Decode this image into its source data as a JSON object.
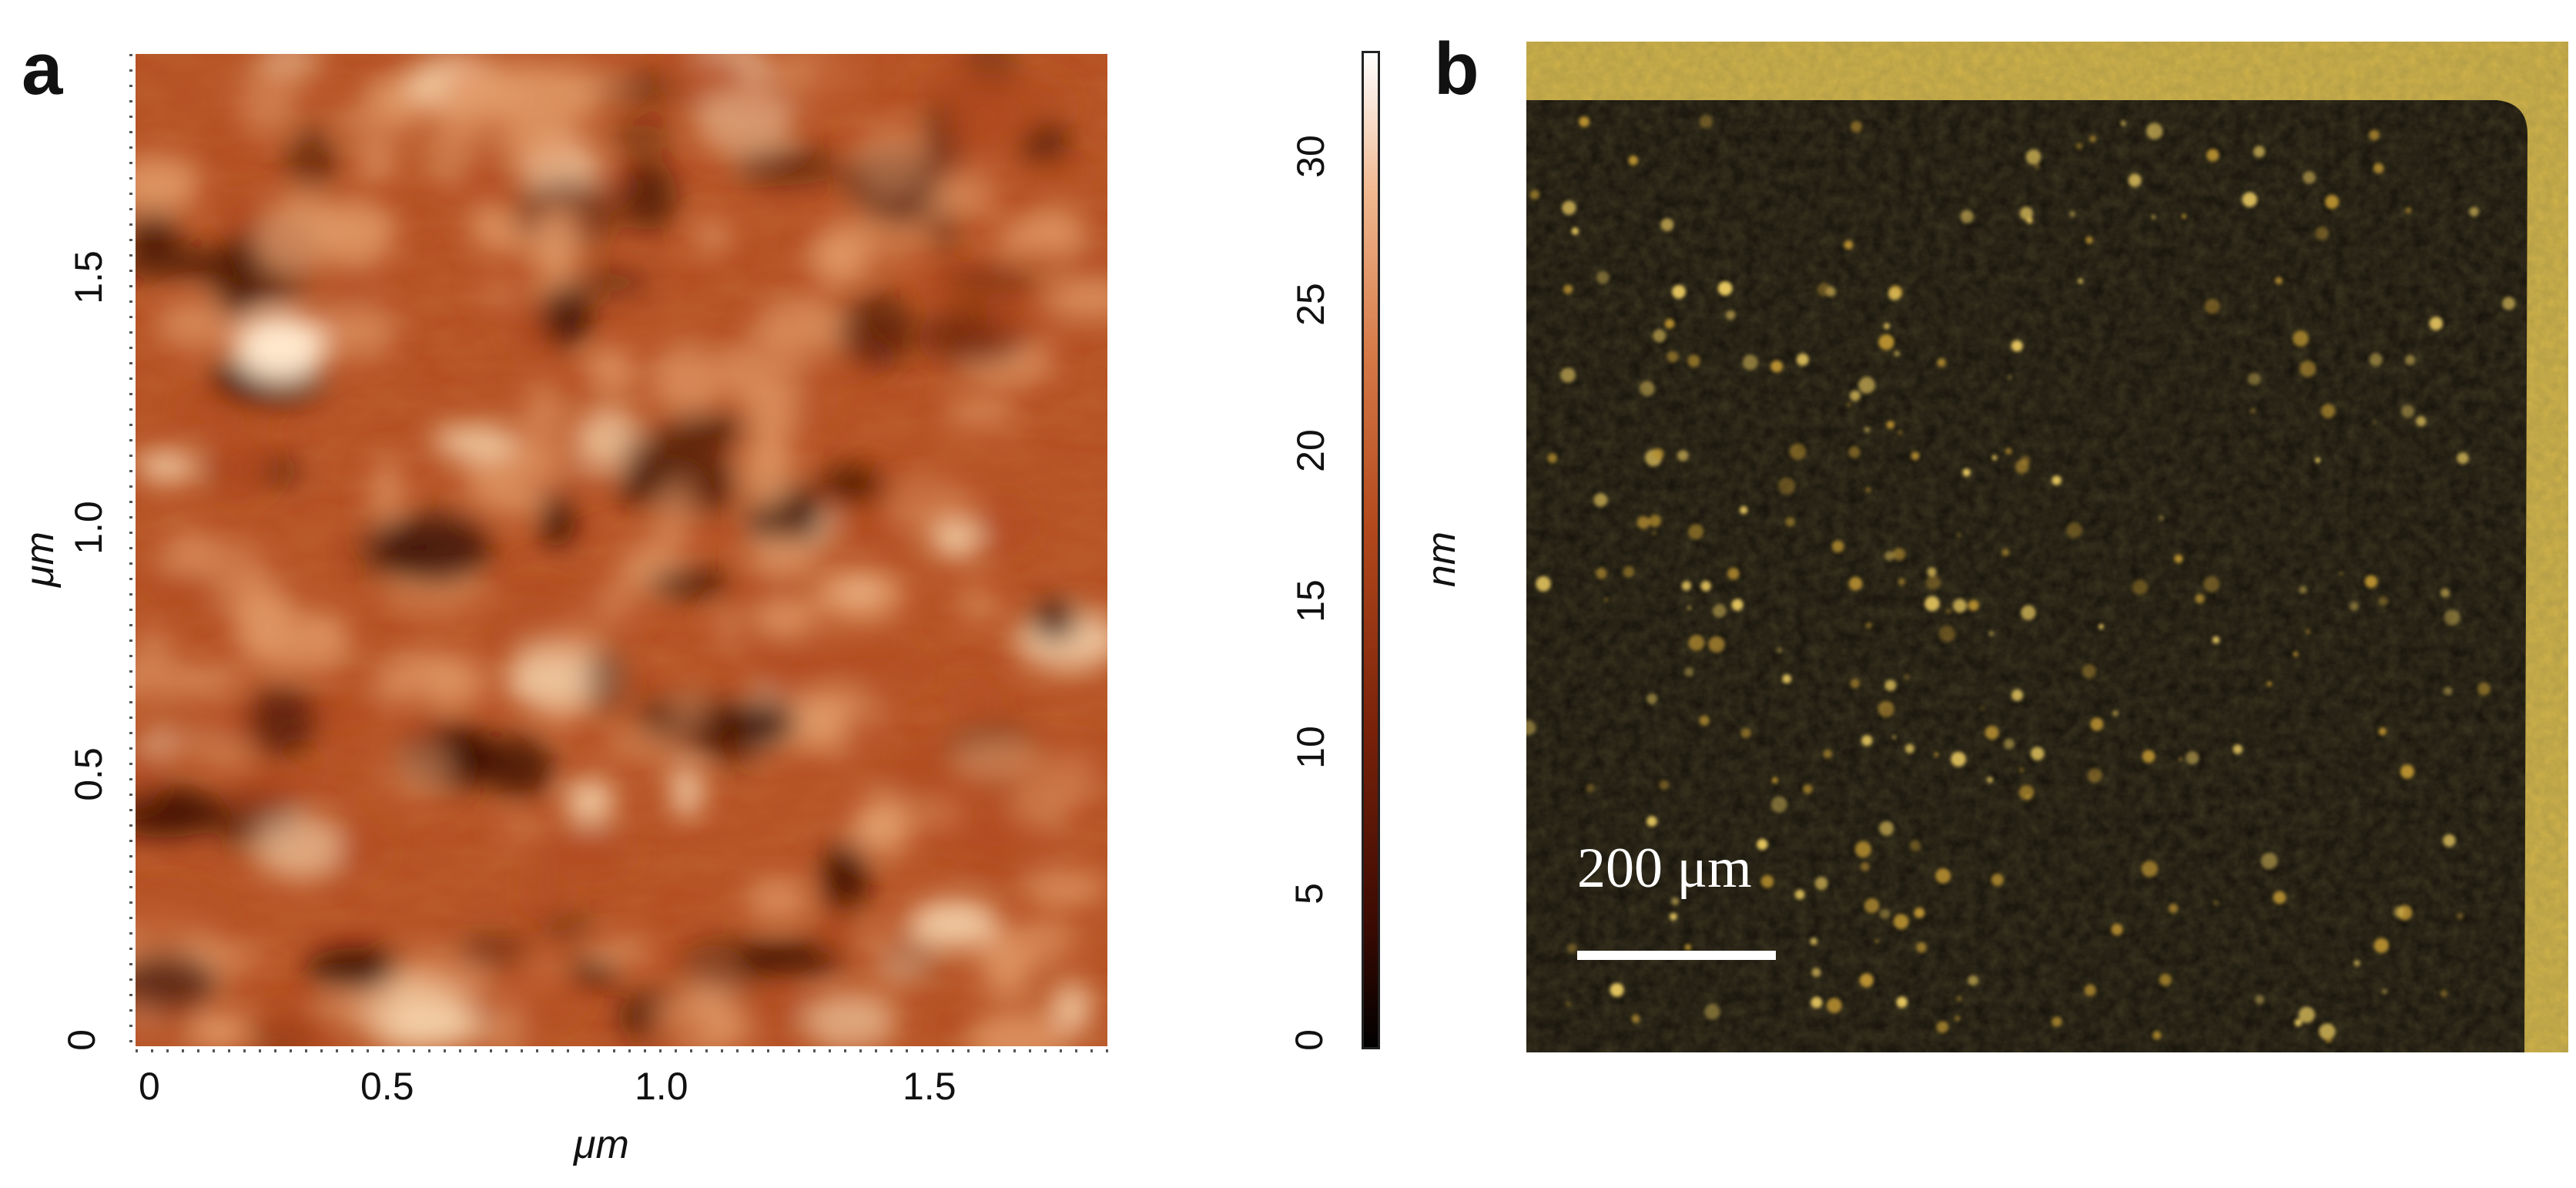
{
  "panel_a": {
    "label": "a",
    "x_axis": {
      "title": "μm",
      "ticks": [
        "0",
        "0.5",
        "1.0",
        "1.5"
      ]
    },
    "y_axis": {
      "title": "μm",
      "ticks": [
        "0",
        "0.5",
        "1.0",
        "1.5"
      ]
    },
    "colorbar": {
      "title": "nm",
      "ticks": [
        "0",
        "5",
        "10",
        "15",
        "20",
        "25",
        "30"
      ]
    }
  },
  "panel_b": {
    "label": "b",
    "scale_bar": {
      "label": "200 μm"
    }
  },
  "colors": {
    "afm_dark": "#3a0f04",
    "afm_mid": "#b24a1e",
    "afm_light": "#f7d7b0",
    "micro_dark": "#14110b",
    "micro_bright": "#e8c860"
  }
}
